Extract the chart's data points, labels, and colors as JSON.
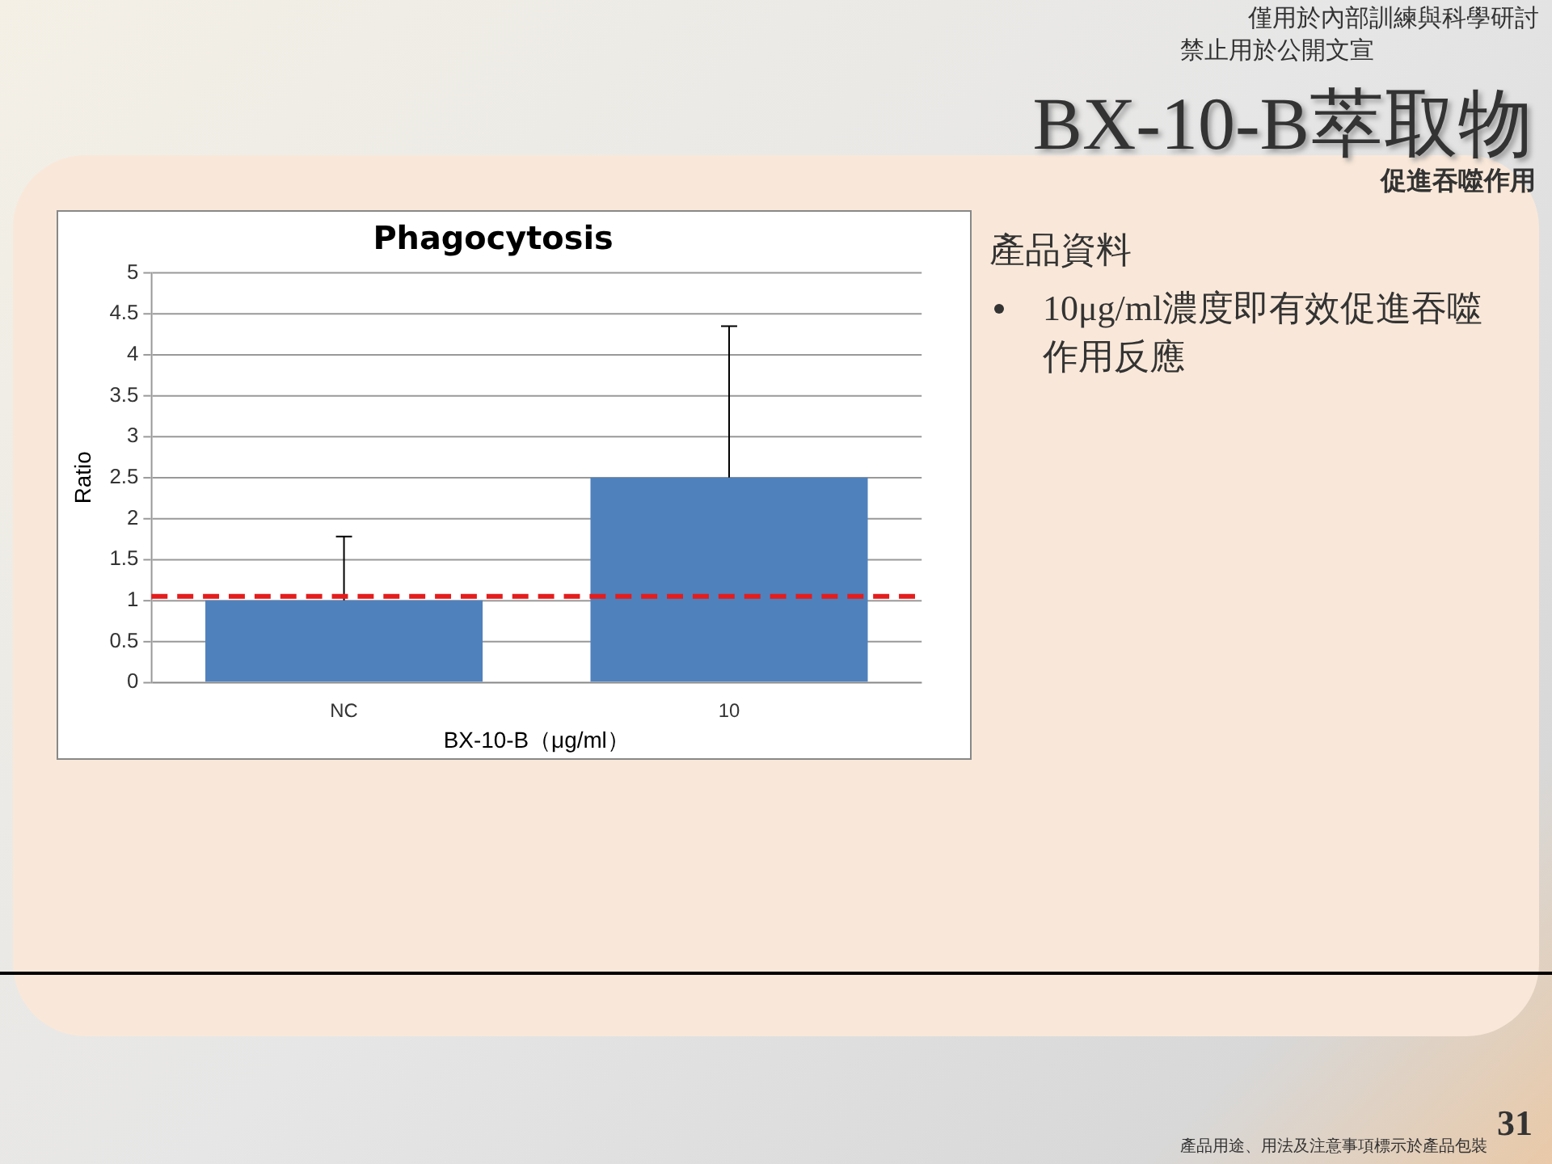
{
  "chart_data": {
    "type": "bar",
    "title": "Phagocytosis",
    "xlabel": "BX-10-B（μg/ml）",
    "ylabel": "Ratio",
    "categories": [
      "NC",
      "10"
    ],
    "series": [
      {
        "color": "#4f81bd",
        "values": [
          1,
          2.5
        ],
        "errors": [
          [
            1,
            1.78
          ],
          [
            2.5,
            4.35
          ]
        ]
      }
    ],
    "ylim": [
      0,
      5
    ],
    "yticks": [
      0,
      0.5,
      1,
      1.5,
      2,
      2.5,
      3,
      3.5,
      4,
      4.5,
      5
    ],
    "grid": "y",
    "legend": false,
    "ref_lines": [
      {
        "axis": "y",
        "value": 1.05,
        "color": "#e41c1c",
        "line_style": "dashed"
      }
    ],
    "annotations": [
      "僅用於內部訓練與科學研討",
      "禁止用於公開文宣",
      "BX-10-B萃取物",
      "促進吞噬作用",
      "產品資料",
      "10μg/ml濃度即有效促進吞噬作用反應",
      "產品用途、用法及注意事項標示於產品包裝",
      "31"
    ]
  }
}
